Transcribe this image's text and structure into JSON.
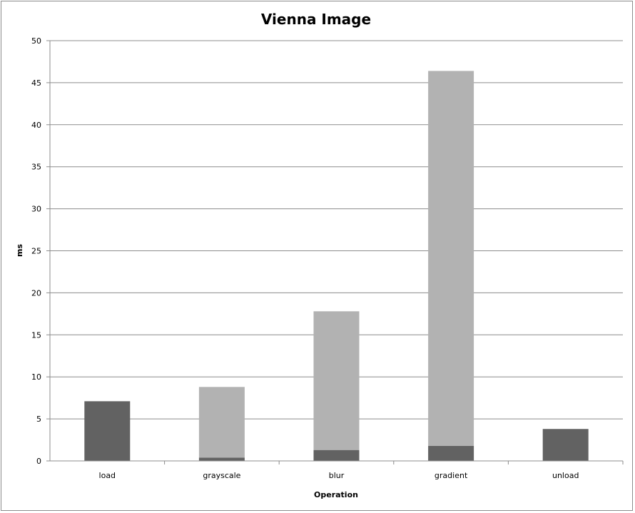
{
  "chart_data": {
    "type": "bar",
    "stacked": true,
    "title": "Vienna Image",
    "xlabel": "Operation",
    "ylabel": "ms",
    "ylim": [
      0,
      50
    ],
    "ytick_step": 5,
    "grid": true,
    "legend": "none",
    "categories": [
      "load",
      "grayscale",
      "blur",
      "gradient",
      "unload"
    ],
    "series": [
      {
        "color": "#626262",
        "values": [
          7.1,
          0.4,
          1.3,
          1.8,
          3.8
        ]
      },
      {
        "color": "#b2b2b2",
        "values": [
          0,
          8.4,
          16.5,
          44.6,
          0
        ]
      }
    ]
  }
}
